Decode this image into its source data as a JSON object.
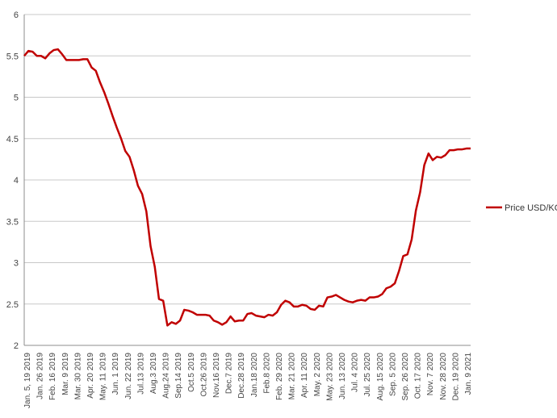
{
  "chart_data": {
    "type": "line",
    "title": "",
    "xlabel": "",
    "ylabel": "",
    "ylim": [
      2,
      6
    ],
    "yticks": [
      "2",
      "2.5",
      "3",
      "3.5",
      "4",
      "4.5",
      "5",
      "5.5",
      "6"
    ],
    "grid": true,
    "legend_position": "right",
    "colors": {
      "line": "#c00000",
      "grid": "#c8c8c8",
      "axis": "#8c8c8c"
    },
    "x_tick_labels": [
      "Jan. 5, 19 2019",
      "Jan. 26 2019",
      "Feb. 16 2019",
      "Mar. 9 2019",
      "Mar. 30 2019",
      "Apr. 20 2019",
      "May. 11 2019",
      "Jun. 1 2019",
      "Jun. 22 2019",
      "Jul.13 2019",
      "Aug.3 2019",
      "Aug.24 2019",
      "Sep.14 2019",
      "Oct.5 2019",
      "Oct.26 2019",
      "Nov.16 2019",
      "Dec.7 2019",
      "Dec.28 2019",
      "Jan.18 2020",
      "Feb.8 2020",
      "Feb. 29 2020",
      "Mar. 21 2020",
      "Apr. 11 2020",
      "May. 2 2020",
      "May. 23 2020",
      "Jun. 13 2020",
      "Jul. 4 2020",
      "Jul. 25 2020",
      "Aug. 15 2020",
      "Sep. 5 2020",
      "Sep. 26 2020",
      "Oct. 17 2020",
      "Nov. 7 2020",
      "Nov. 28 2020",
      "Dec. 19 2020",
      "Jan. 9 2021"
    ],
    "series": [
      {
        "name": "Price USD/KG",
        "values": [
          5.5,
          5.56,
          5.55,
          5.5,
          5.5,
          5.47,
          5.53,
          5.57,
          5.58,
          5.52,
          5.45,
          5.45,
          5.45,
          5.45,
          5.46,
          5.46,
          5.36,
          5.32,
          5.18,
          5.06,
          4.92,
          4.77,
          4.63,
          4.5,
          4.35,
          4.28,
          4.12,
          3.93,
          3.83,
          3.62,
          3.2,
          2.95,
          2.56,
          2.54,
          2.24,
          2.28,
          2.26,
          2.3,
          2.43,
          2.42,
          2.4,
          2.37,
          2.37,
          2.37,
          2.36,
          2.3,
          2.28,
          2.25,
          2.28,
          2.35,
          2.29,
          2.3,
          2.3,
          2.38,
          2.39,
          2.36,
          2.35,
          2.34,
          2.37,
          2.36,
          2.4,
          2.49,
          2.54,
          2.52,
          2.47,
          2.47,
          2.49,
          2.48,
          2.44,
          2.43,
          2.48,
          2.47,
          2.58,
          2.59,
          2.61,
          2.58,
          2.55,
          2.53,
          2.52,
          2.54,
          2.55,
          2.54,
          2.58,
          2.58,
          2.59,
          2.62,
          2.69,
          2.71,
          2.75,
          2.9,
          3.08,
          3.1,
          3.28,
          3.63,
          3.85,
          4.18,
          4.32,
          4.24,
          4.28,
          4.27,
          4.3,
          4.36,
          4.36,
          4.37,
          4.37,
          4.38,
          4.38
        ]
      }
    ]
  }
}
